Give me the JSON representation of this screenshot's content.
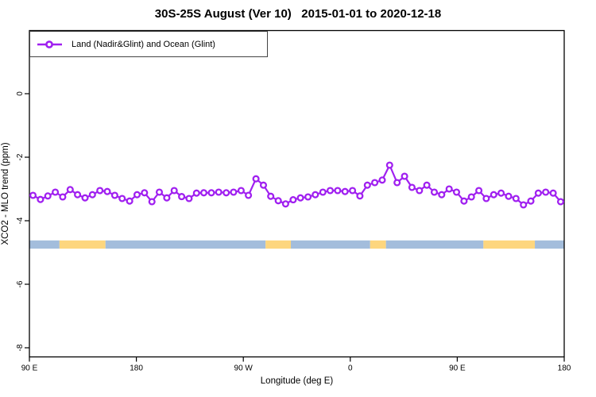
{
  "title": "30S-25S August (Ver 10)   2015-01-01 to 2020-12-18",
  "legend": {
    "label": "Land (Nadir&Glint) and Ocean (Glint)"
  },
  "axes": {
    "x": {
      "title": "Longitude (deg E)",
      "ticks": [
        {
          "lon": 90,
          "label": "90 E"
        },
        {
          "lon": 180,
          "label": "180"
        },
        {
          "lon": 270,
          "label": "90 W"
        },
        {
          "lon": 360,
          "label": "0"
        },
        {
          "lon": 450,
          "label": "90 E"
        },
        {
          "lon": 540,
          "label": "180"
        }
      ]
    },
    "y": {
      "title": "XCO2 - MLO trend (ppm)",
      "ticks": [
        {
          "value": 0,
          "label": "0"
        },
        {
          "value": -2,
          "label": "-2"
        },
        {
          "value": -4,
          "label": "-4"
        },
        {
          "value": -6,
          "label": "-6"
        },
        {
          "value": -8,
          "label": "-8"
        }
      ]
    }
  },
  "colors": {
    "series": "#a020f0",
    "marker_fill": "#ffffff",
    "ocean_band": "#a3bddc",
    "land_band": "#fdd67e",
    "axis": "#000000",
    "background": "#ffffff"
  },
  "chart_data": {
    "type": "line",
    "title": "30S-25S August (Ver 10)   2015-01-01 to 2020-12-18",
    "xlabel": "Longitude (deg E)",
    "ylabel": "XCO2 - MLO trend (ppm)",
    "xlim_deg_east": [
      90,
      540
    ],
    "ylim_ppm": [
      -8.3,
      2.0
    ],
    "grid": false,
    "legend_position": "top-left",
    "series": [
      {
        "name": "Land (Nadir&Glint) and Ocean (Glint)",
        "color": "#a020f0",
        "marker": "open-circle",
        "lons": [
          93.0,
          99.3,
          105.5,
          111.8,
          118.0,
          124.3,
          130.5,
          136.8,
          143.0,
          149.3,
          155.5,
          161.8,
          168.0,
          174.3,
          180.6,
          186.8,
          193.1,
          199.3,
          205.6,
          211.8,
          218.1,
          224.3,
          230.6,
          236.8,
          243.1,
          249.3,
          255.6,
          261.8,
          268.1,
          274.3,
          280.6,
          286.9,
          293.1,
          299.4,
          305.6,
          311.9,
          318.1,
          324.4,
          330.6,
          336.9,
          343.1,
          349.4,
          355.6,
          361.9,
          368.1,
          374.4,
          380.6,
          386.9,
          393.1,
          399.4,
          405.7,
          411.9,
          418.2,
          424.4,
          430.7,
          436.9,
          443.2,
          449.4,
          455.7,
          461.9,
          468.2,
          474.4,
          480.7,
          486.9,
          493.2,
          499.4,
          505.7,
          511.9,
          518.2,
          524.4,
          530.7,
          537.0
        ],
        "values": [
          -3.2,
          -3.33,
          -3.22,
          -3.1,
          -3.25,
          -3.02,
          -3.18,
          -3.28,
          -3.18,
          -3.05,
          -3.08,
          -3.2,
          -3.3,
          -3.38,
          -3.18,
          -3.12,
          -3.4,
          -3.1,
          -3.28,
          -3.05,
          -3.24,
          -3.3,
          -3.13,
          -3.12,
          -3.12,
          -3.1,
          -3.12,
          -3.1,
          -3.05,
          -3.2,
          -2.68,
          -2.88,
          -3.23,
          -3.37,
          -3.47,
          -3.34,
          -3.28,
          -3.25,
          -3.18,
          -3.1,
          -3.05,
          -3.05,
          -3.08,
          -3.05,
          -3.22,
          -2.88,
          -2.8,
          -2.72,
          -2.25,
          -2.8,
          -2.6,
          -2.95,
          -3.05,
          -2.88,
          -3.1,
          -3.18,
          -3.0,
          -3.1,
          -3.38,
          -3.25,
          -3.05,
          -3.3,
          -3.18,
          -3.13,
          -3.23,
          -3.3,
          -3.5,
          -3.38,
          -3.13,
          -3.1,
          -3.13,
          -3.4
        ]
      }
    ],
    "surface_band": {
      "y_range_ppm": [
        -4.62,
        -4.88
      ],
      "ocean_color": "#a3bddc",
      "land_color": "#fdd67e",
      "segments": [
        {
          "from": 90.0,
          "to": 115.3,
          "type": "ocean"
        },
        {
          "from": 115.3,
          "to": 154.0,
          "type": "land"
        },
        {
          "from": 154.0,
          "to": 288.7,
          "type": "ocean"
        },
        {
          "from": 288.7,
          "to": 310.0,
          "type": "land"
        },
        {
          "from": 310.0,
          "to": 376.7,
          "type": "ocean"
        },
        {
          "from": 376.7,
          "to": 390.0,
          "type": "land"
        },
        {
          "from": 390.0,
          "to": 472.0,
          "type": "ocean"
        },
        {
          "from": 472.0,
          "to": 515.3,
          "type": "land"
        },
        {
          "from": 515.3,
          "to": 540.0,
          "type": "ocean"
        }
      ]
    }
  }
}
